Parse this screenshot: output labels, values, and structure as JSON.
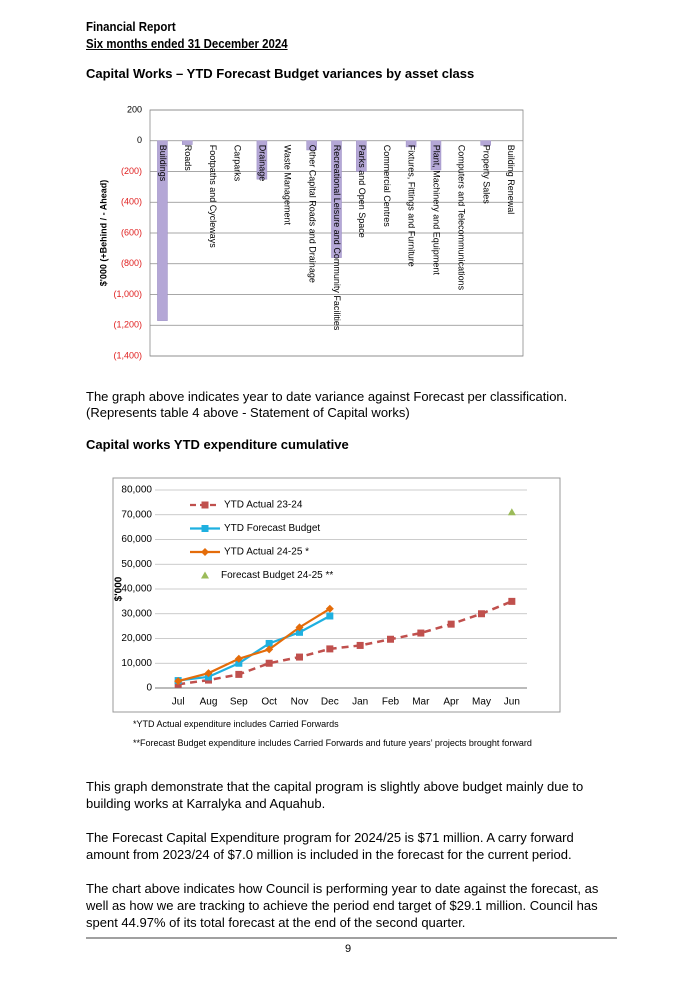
{
  "header": {
    "title": "Financial Report",
    "subtitle": "Six months ended 31 December 2024"
  },
  "section1_title": "Capital Works – YTD Forecast Budget variances by asset class",
  "note1": [
    "The graph above indicates year to date variance against Forecast per classification.",
    "(Represents table 4 above - Statement of Capital works)"
  ],
  "section2_title": "Capital works YTD expenditure cumulative",
  "footnotes": [
    "*YTD Actual expenditure includes Carried Forwards",
    "**Forecast Budget expenditure includes Carried Forwards and future years’ projects brought forward"
  ],
  "paragraphs": [
    "This graph demonstrate that the capital program is slightly above budget mainly due to building works at Karralyka and Aquahub.",
    "The Forecast Capital Expenditure program for 2024/25 is $71 million. A carry forward amount from 2023/24 of $7.0 million is included in the forecast for the current period.",
    "The chart above indicates how Council is performing year to date against the forecast, as well as how we are tracking to achieve the period end target of $29.1 million. Council has spent 44.97% of its total forecast at the end of the second quarter."
  ],
  "page_number": "9",
  "chart_data": [
    {
      "type": "bar",
      "y_label": "$'000 (+Behind / - Ahead)",
      "categories": [
        "Buildings",
        "Roads",
        "Footpaths and Cycleways",
        "Carparks",
        "Drainage",
        "Waste Management",
        "Other Capital Roads and Drainage",
        "Recreational Leisure and Community Facilities",
        "Parks and Open Space",
        "Commercial Centres",
        "Fixtures, Fittings and Furniture",
        "Plant, Machinery and Equipment",
        "Computers and Telecommunications",
        "Property Sales",
        "Building Renewal"
      ],
      "values": [
        -1170,
        -25,
        0,
        0,
        -250,
        0,
        -60,
        -760,
        -200,
        0,
        -40,
        -190,
        0,
        -30,
        0
      ],
      "color": "#b4a7d6",
      "negative_label_color": "#e02020",
      "ylim": [
        -1400,
        200
      ],
      "yticks": [
        200,
        0,
        {
          "value": -200,
          "label": "(200)"
        },
        {
          "value": -400,
          "label": "(400)"
        },
        {
          "value": -600,
          "label": "(600)"
        },
        {
          "value": -800,
          "label": "(800)"
        },
        {
          "value": -1000,
          "label": "(1,000)"
        },
        {
          "value": -1200,
          "label": "(1,200)"
        },
        {
          "value": -1400,
          "label": "(1,400)"
        }
      ],
      "grid": true
    },
    {
      "type": "line",
      "y_label": "$'000",
      "categories": [
        "Jul",
        "Aug",
        "Sep",
        "Oct",
        "Nov",
        "Dec",
        "Jan",
        "Feb",
        "Mar",
        "Apr",
        "May",
        "Jun"
      ],
      "series": [
        {
          "name": "YTD Actual 23-24",
          "color": "#c0504d",
          "style": "dashed",
          "marker": "square",
          "values": [
            1500,
            3200,
            5500,
            10000,
            12500,
            15800,
            17200,
            19700,
            22200,
            25800,
            30000,
            35000
          ]
        },
        {
          "name": "YTD  Forecast Budget",
          "color": "#1fb0e0",
          "style": "solid",
          "marker": "square",
          "values": [
            3000,
            4500,
            10000,
            18000,
            22500,
            29100,
            null,
            null,
            null,
            null,
            null,
            null
          ]
        },
        {
          "name": "YTD  Actual 24-25 *",
          "color": "#e46c0a",
          "style": "solid",
          "marker": "diamond",
          "values": [
            2800,
            6000,
            11800,
            15600,
            24500,
            32000,
            null,
            null,
            null,
            null,
            null,
            null
          ]
        },
        {
          "name": "Forecast Budget 24-25 **",
          "color": "#9bbb59",
          "style": "none",
          "marker": "triangle",
          "values": [
            null,
            null,
            null,
            null,
            null,
            null,
            null,
            null,
            null,
            null,
            null,
            71000
          ]
        }
      ],
      "ylim": [
        0,
        80000
      ],
      "yticks": [
        0,
        {
          "value": 10000,
          "label": "10,000"
        },
        {
          "value": 20000,
          "label": "20,000"
        },
        {
          "value": 30000,
          "label": "30,000"
        },
        {
          "value": 40000,
          "label": "40,000"
        },
        {
          "value": 50000,
          "label": "50,000"
        },
        {
          "value": 60000,
          "label": "60,000"
        },
        {
          "value": 70000,
          "label": "70,000"
        },
        {
          "value": 80000,
          "label": "80,000"
        }
      ],
      "grid": true
    }
  ]
}
